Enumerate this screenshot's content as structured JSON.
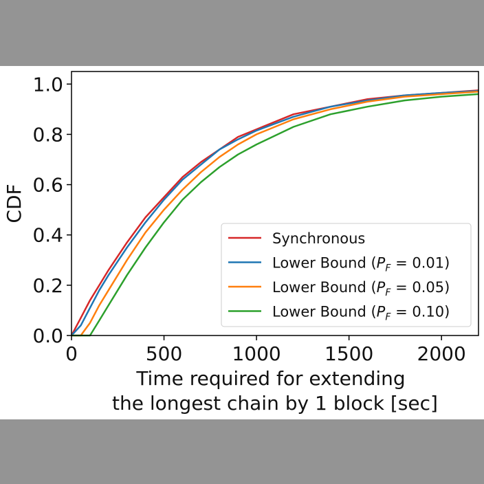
{
  "chart_data": {
    "type": "line",
    "xlabel_lines": [
      "Time required for extending",
      "the longest chain by 1 block [sec]"
    ],
    "ylabel": "CDF",
    "xlim": [
      0,
      2200
    ],
    "ylim": [
      0,
      1.05
    ],
    "xticks": [
      0,
      500,
      1000,
      1500,
      2000
    ],
    "xtick_labels": [
      "0",
      "500",
      "1000",
      "1500",
      "2000"
    ],
    "yticks": [
      0.0,
      0.2,
      0.4,
      0.6,
      0.8,
      1.0
    ],
    "ytick_labels": [
      "0.0",
      "0.2",
      "0.4",
      "0.6",
      "0.8",
      "1.0"
    ],
    "grid": false,
    "legend_position": "lower-right",
    "x": [
      0,
      50,
      100,
      150,
      200,
      300,
      400,
      500,
      600,
      700,
      800,
      900,
      1000,
      1200,
      1400,
      1600,
      1800,
      2000,
      2200
    ],
    "series": [
      {
        "name": "Synchronous",
        "color": "#d62728",
        "values": [
          0.0,
          0.07,
          0.14,
          0.2,
          0.26,
          0.37,
          0.47,
          0.55,
          0.63,
          0.69,
          0.74,
          0.79,
          0.82,
          0.88,
          0.91,
          0.94,
          0.955,
          0.965,
          0.975
        ]
      },
      {
        "name": "Lower Bound (P_F = 0.01)",
        "name_prefix": "Lower Bound (",
        "name_var": "P",
        "name_sub": "F",
        "name_suffix": " = 0.01)",
        "color": "#1f77b4",
        "values": [
          0.0,
          0.04,
          0.11,
          0.18,
          0.24,
          0.35,
          0.45,
          0.54,
          0.62,
          0.68,
          0.74,
          0.78,
          0.815,
          0.87,
          0.91,
          0.935,
          0.955,
          0.965,
          0.973
        ]
      },
      {
        "name": "Lower Bound (P_F = 0.05)",
        "name_prefix": "Lower Bound (",
        "name_var": "P",
        "name_sub": "F",
        "name_suffix": " = 0.05)",
        "color": "#ff7f0e",
        "values": [
          0.0,
          0.0,
          0.05,
          0.12,
          0.18,
          0.3,
          0.41,
          0.5,
          0.58,
          0.65,
          0.71,
          0.76,
          0.8,
          0.86,
          0.9,
          0.93,
          0.95,
          0.96,
          0.97
        ]
      },
      {
        "name": "Lower Bound (P_F = 0.10)",
        "name_prefix": "Lower Bound (",
        "name_var": "P",
        "name_sub": "F",
        "name_suffix": " = 0.10)",
        "color": "#2ca02c",
        "values": [
          0.0,
          0.0,
          0.0,
          0.06,
          0.12,
          0.24,
          0.35,
          0.45,
          0.54,
          0.61,
          0.67,
          0.72,
          0.76,
          0.83,
          0.88,
          0.91,
          0.935,
          0.95,
          0.96
        ]
      }
    ]
  }
}
